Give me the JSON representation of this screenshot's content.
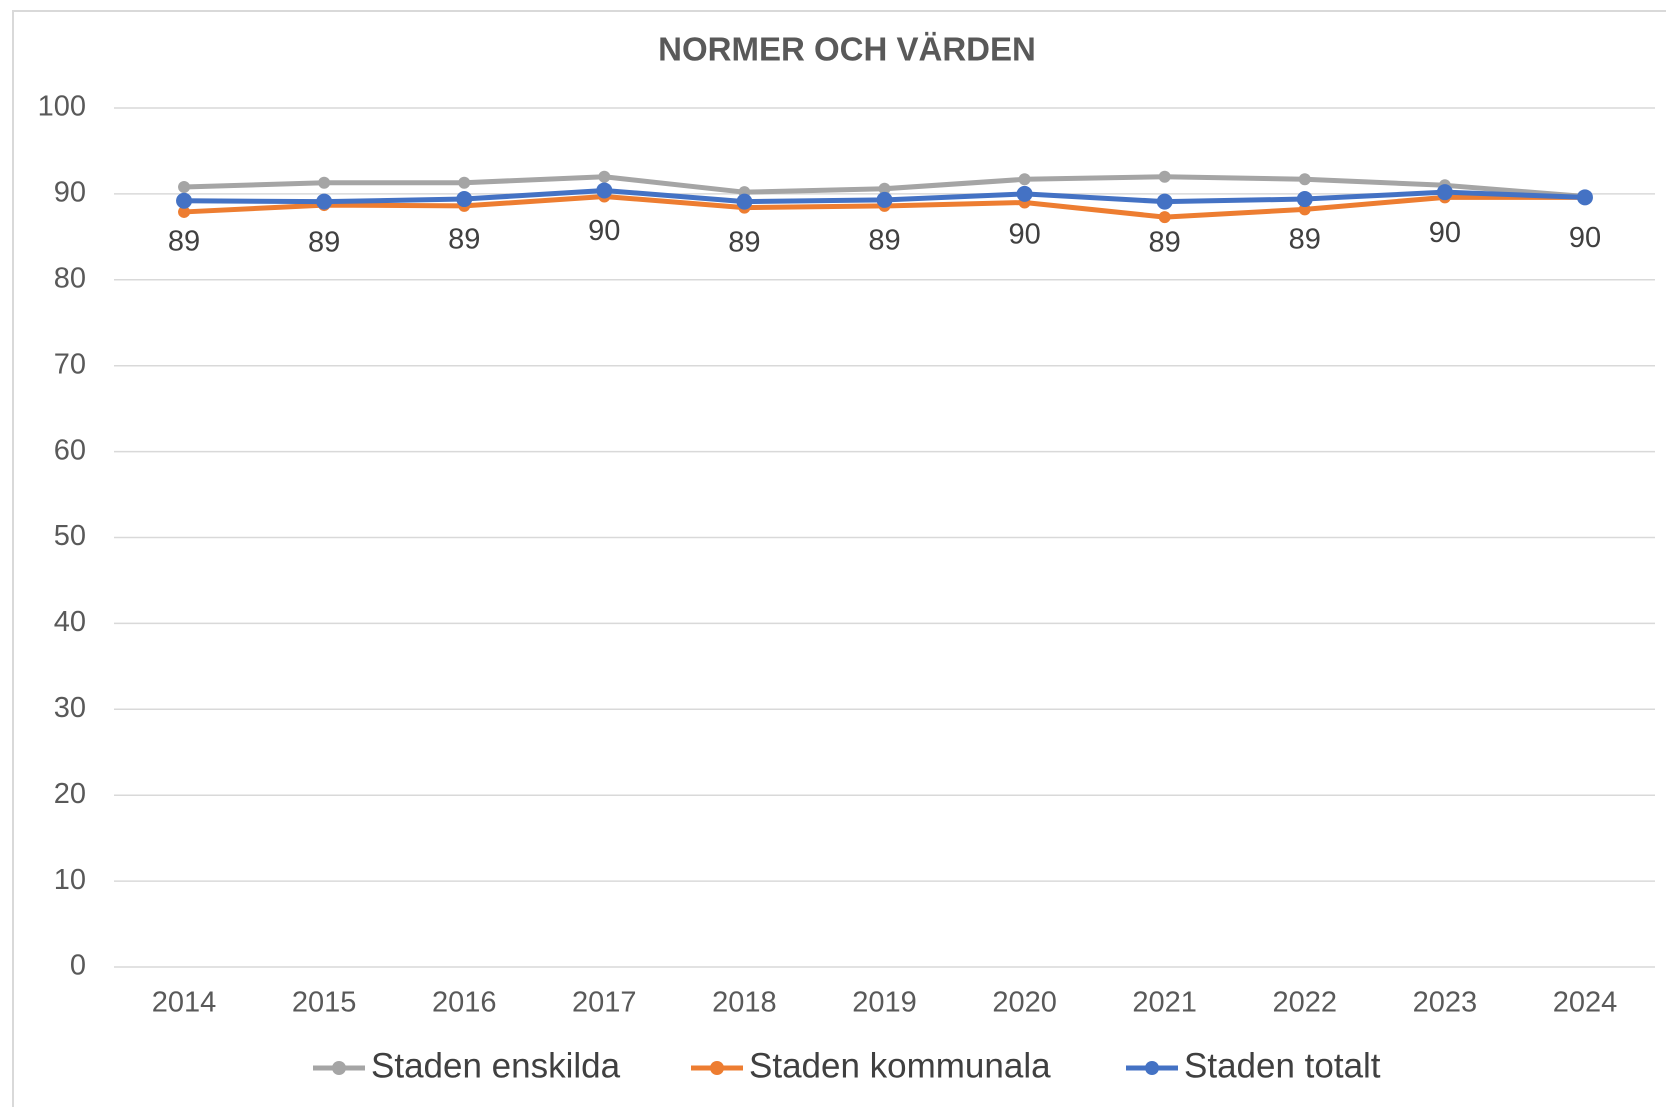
{
  "chart_data": {
    "type": "line",
    "title": "NORMER OCH VÄRDEN",
    "categories": [
      "2014",
      "2015",
      "2016",
      "2017",
      "2018",
      "2019",
      "2020",
      "2021",
      "2022",
      "2023",
      "2024"
    ],
    "series": [
      {
        "name": "Staden enskilda",
        "color": "#a5a5a5",
        "values": [
          90.8,
          91.3,
          91.3,
          92.0,
          90.2,
          90.6,
          91.7,
          92.0,
          91.7,
          91.0,
          89.7
        ]
      },
      {
        "name": "Staden kommunala",
        "color": "#ed7d31",
        "values": [
          87.9,
          88.7,
          88.6,
          89.7,
          88.4,
          88.6,
          89.0,
          87.3,
          88.2,
          89.6,
          89.6
        ]
      },
      {
        "name": "Staden totalt",
        "color": "#4472c4",
        "values": [
          89.2,
          89.1,
          89.4,
          90.4,
          89.1,
          89.3,
          90.0,
          89.1,
          89.4,
          90.2,
          89.6
        ],
        "value_labels": [
          "89",
          "89",
          "89",
          "90",
          "89",
          "89",
          "90",
          "89",
          "89",
          "90",
          "90"
        ]
      }
    ],
    "ylim": [
      0,
      100
    ],
    "yticks": [
      0,
      10,
      20,
      30,
      40,
      50,
      60,
      70,
      80,
      90,
      100
    ],
    "grid": true,
    "legend": "bottom"
  }
}
